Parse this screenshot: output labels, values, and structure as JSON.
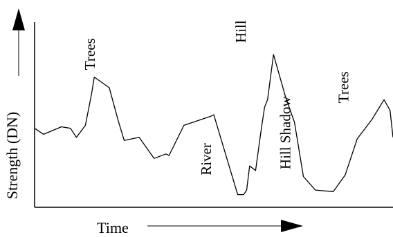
{
  "chart_data": {
    "type": "line",
    "title": "",
    "xlabel": "Time",
    "ylabel": "Strength (DN)",
    "x_axis_arrow": true,
    "y_axis_arrow": true,
    "ticks": false,
    "grid": false,
    "x": [
      0,
      3,
      9,
      12,
      14,
      17,
      19,
      20,
      25,
      28,
      30,
      35,
      40,
      44,
      45,
      50,
      59,
      60,
      68,
      70,
      71,
      72,
      74,
      76,
      77,
      78,
      80,
      84,
      87,
      90,
      94,
      100,
      104,
      107,
      108,
      113,
      117,
      119,
      120
    ],
    "values": [
      46,
      42,
      47,
      46,
      40,
      48,
      68,
      80,
      73,
      51,
      38,
      40,
      26,
      29,
      28,
      48,
      54,
      55,
      2,
      2,
      5,
      21,
      18,
      47,
      60,
      65,
      95,
      67,
      50,
      14,
      5,
      4,
      15,
      33,
      39,
      52,
      65,
      58,
      40
    ],
    "xlim": [
      0,
      120
    ],
    "ylim": [
      0,
      100
    ],
    "series_color": "#000000",
    "annotations": [
      {
        "text": "Trees",
        "x": 19,
        "y": 82
      },
      {
        "text": "River",
        "x": 58,
        "y": 12
      },
      {
        "text": "Hill",
        "x": 69.5,
        "y": 100
      },
      {
        "text": "Hill Shadow",
        "x": 84.5,
        "y": 16
      },
      {
        "text": "Trees",
        "x": 104,
        "y": 60
      }
    ]
  }
}
